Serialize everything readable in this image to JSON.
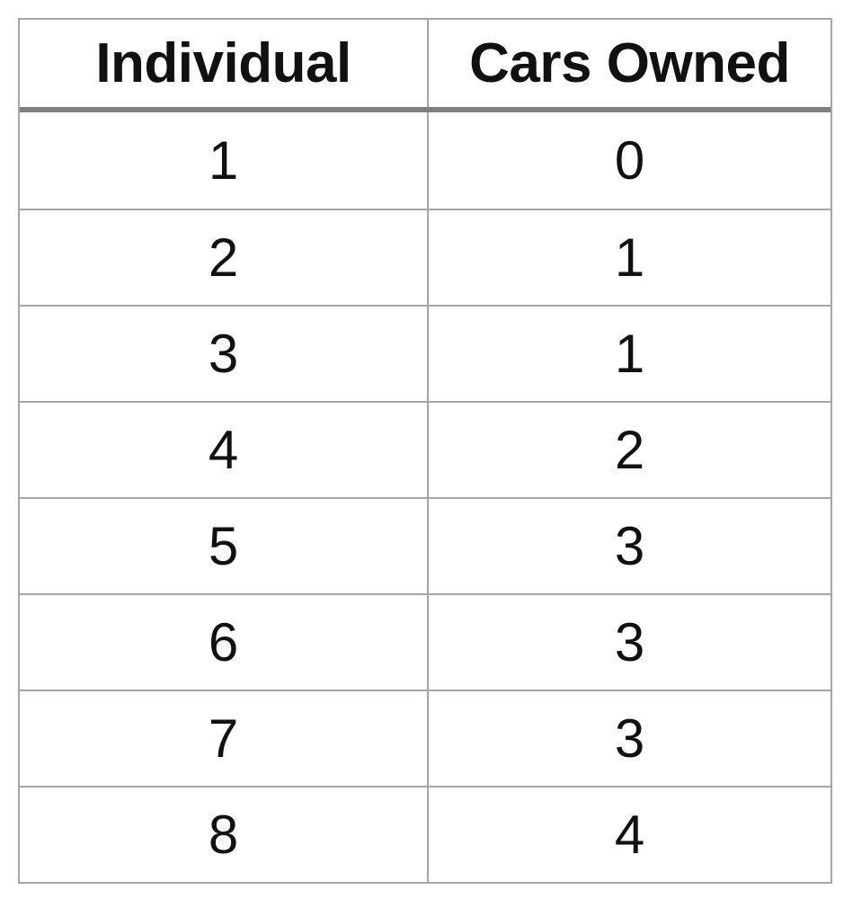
{
  "table": {
    "headers": [
      "Individual",
      "Cars Owned"
    ],
    "rows": [
      [
        "1",
        "0"
      ],
      [
        "2",
        "1"
      ],
      [
        "3",
        "1"
      ],
      [
        "4",
        "2"
      ],
      [
        "5",
        "3"
      ],
      [
        "6",
        "3"
      ],
      [
        "7",
        "3"
      ],
      [
        "8",
        "4"
      ]
    ]
  }
}
